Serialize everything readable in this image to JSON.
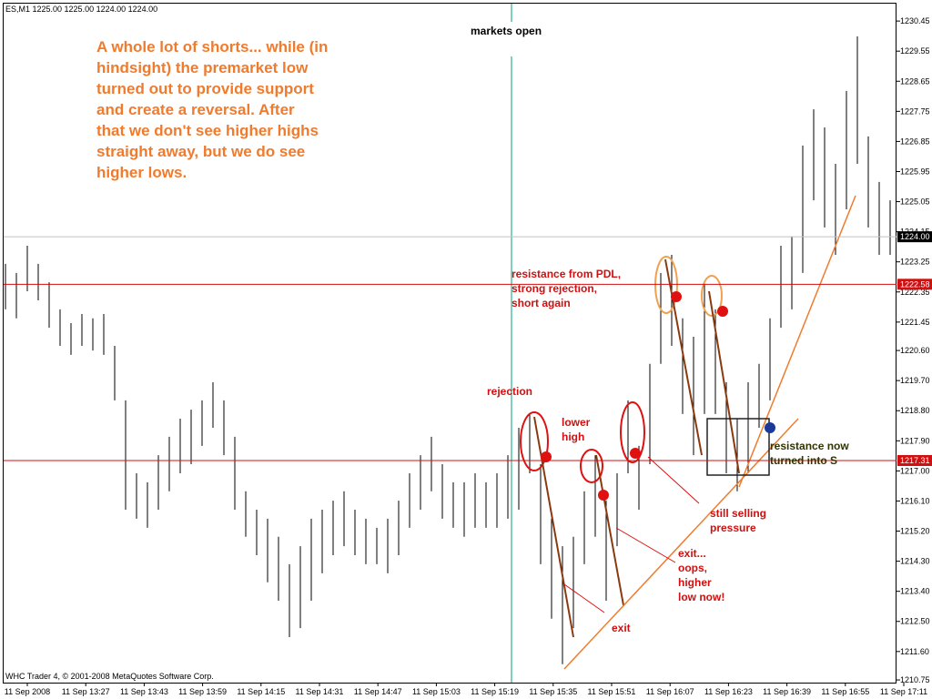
{
  "chart_data": {
    "type": "ohlc",
    "header": "ES,M1  1225.00 1225.00 1224.00 1224.00",
    "footer": "WHC Trader 4, © 2001-2008 MetaQuotes Software Corp.",
    "x_labels": [
      "11 Sep 2008",
      "11 Sep 13:27",
      "11 Sep 13:43",
      "11 Sep 13:59",
      "11 Sep 14:15",
      "11 Sep 14:31",
      "11 Sep 14:47",
      "11 Sep 15:03",
      "11 Sep 15:19",
      "11 Sep 15:35",
      "11 Sep 15:51",
      "11 Sep 16:07",
      "11 Sep 16:23",
      "11 Sep 16:39",
      "11 Sep 16:55",
      "11 Sep 17:11"
    ],
    "high": [
      1223.19,
      1222.92,
      1223.73,
      1223.19,
      1222.64,
      1221.83,
      1221.42,
      1221.69,
      1221.56,
      1221.69,
      1220.74,
      1219.11,
      1216.93,
      1216.66,
      1217.47,
      1218.02,
      1218.56,
      1218.83,
      1219.11,
      1219.65,
      1219.11,
      1218.02,
      1216.39,
      1215.84,
      1215.57,
      1215.03,
      1214.21,
      1214.75,
      1215.57,
      1215.84,
      1216.11,
      1216.39,
      1215.84,
      1215.57,
      1215.3,
      1215.57,
      1216.11,
      1216.93,
      1217.47,
      1218.02,
      1217.2,
      1216.66,
      1216.66,
      1216.93,
      1216.66,
      1216.93,
      1217.47,
      1218.29,
      1218.7,
      1217.2,
      1215.57,
      1214.75,
      1215.03,
      1216.39,
      1217.47,
      1216.11,
      1216.93,
      1219.11,
      1217.75,
      1220.2,
      1222.92,
      1223.46,
      1221.56,
      1221.01,
      1222.64,
      1221.83,
      1219.65,
      1218.56,
      1219.65,
      1220.2,
      1221.56,
      1223.73,
      1224.01,
      1226.73,
      1227.81,
      1227.27,
      1226.18,
      1228.36,
      1229.99,
      1227.0,
      1225.64,
      1225.09
    ],
    "low": [
      1221.83,
      1221.56,
      1222.37,
      1222.1,
      1221.28,
      1220.74,
      1220.47,
      1220.74,
      1220.6,
      1220.47,
      1219.11,
      1215.84,
      1215.57,
      1215.3,
      1215.84,
      1216.39,
      1216.93,
      1217.2,
      1217.75,
      1218.29,
      1217.47,
      1215.84,
      1215.03,
      1214.48,
      1213.67,
      1213.12,
      1212.03,
      1212.3,
      1213.12,
      1213.94,
      1214.48,
      1214.75,
      1214.48,
      1214.21,
      1214.21,
      1213.94,
      1214.48,
      1215.3,
      1215.84,
      1216.39,
      1215.57,
      1215.3,
      1215.03,
      1215.3,
      1215.3,
      1215.3,
      1215.57,
      1215.84,
      1216.93,
      1214.21,
      1212.58,
      1211.22,
      1212.3,
      1214.21,
      1215.03,
      1213.12,
      1214.75,
      1216.93,
      1215.84,
      1217.2,
      1220.2,
      1220.74,
      1218.7,
      1217.47,
      1218.7,
      1218.7,
      1216.93,
      1216.39,
      1216.93,
      1218.29,
      1219.11,
      1221.28,
      1221.83,
      1222.92,
      1225.09,
      1224.28,
      1223.46,
      1224.82,
      1226.18,
      1224.28,
      1223.46,
      1223.46
    ],
    "ylim": [
      1210.67,
      1230.97
    ],
    "yticks": [
      1230.45,
      1229.55,
      1228.65,
      1227.75,
      1226.85,
      1225.95,
      1225.05,
      1224.15,
      1223.25,
      1222.35,
      1221.45,
      {
        "value": 1220.6,
        "label": "1220.60"
      },
      {
        "value": 1219.7,
        "label": "1219.70"
      },
      {
        "value": 1218.8,
        "label": "1218.80"
      },
      {
        "value": 1217.9,
        "label": "1217.90"
      },
      {
        "value": 1217,
        "label": "1217.00"
      },
      {
        "value": 1216.1,
        "label": "1216.10"
      },
      {
        "value": 1215.2,
        "label": "1215.20"
      },
      {
        "value": 1214.3,
        "label": "1214.30"
      },
      {
        "value": 1213.4,
        "label": "1213.40"
      },
      {
        "value": 1212.5,
        "label": "1212.50"
      },
      {
        "value": 1211.6,
        "label": "1211.60"
      },
      1210.75
    ],
    "levels": [
      {
        "value": 1224,
        "label": "1224.00",
        "color": "#c0c0c0"
      },
      {
        "value": 1222.58,
        "label": "1222.58",
        "color": "#d01010"
      },
      {
        "value": 1217.31,
        "label": "1217.31",
        "color": "#d01010"
      }
    ],
    "annotations": [
      [
        "A whole lot of shorts... while (in",
        "hindsight) the premarket low",
        "turned out to provide support",
        "and create a reversal. After",
        "that we don't see higher highs",
        "straight away, but we do see",
        "higher lows."
      ],
      [
        "markets open"
      ],
      [
        "resistance from PDL,",
        "strong rejection,",
        "short again"
      ],
      [
        "rejection"
      ],
      [
        "lower",
        "high"
      ],
      [
        "resistance now",
        "turned into S"
      ],
      [
        "still selling",
        "pressure"
      ],
      [
        "exit...",
        "oops,",
        "higher",
        "low now!"
      ],
      [
        "exit"
      ]
    ]
  }
}
